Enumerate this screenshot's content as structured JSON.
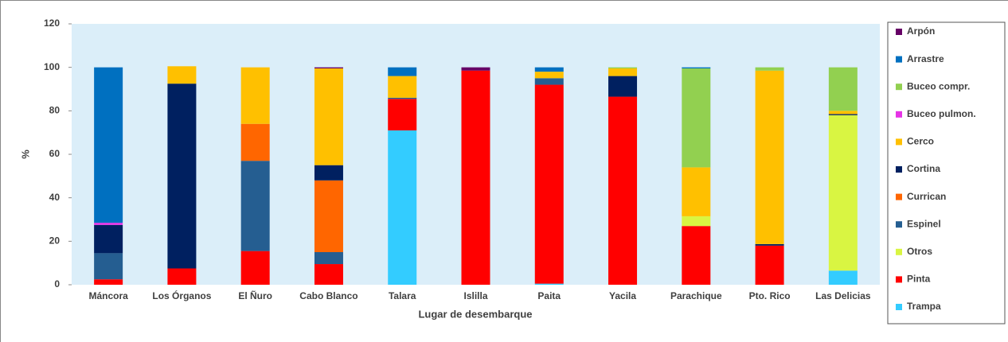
{
  "chart_data": {
    "type": "stacked_bar",
    "x_label": "Lugar de desembarque",
    "y_label": "%",
    "categories": [
      "Máncora",
      "Los Órganos",
      "El Ñuro",
      "Cabo Blanco",
      "Talara",
      "Islilla",
      "Paita",
      "Yacila",
      "Parachique",
      "Pto. Rico",
      "Las Delicias"
    ],
    "series": [
      {
        "name": "Arpón",
        "color": "#660066",
        "values": [
          0,
          0,
          0,
          0.5,
          0,
          1.5,
          0,
          0,
          0,
          0,
          0
        ]
      },
      {
        "name": "Arrastre",
        "color": "#0070c0",
        "values": [
          71.5,
          0,
          0,
          0,
          4,
          0,
          2,
          0,
          0.5,
          0,
          0
        ]
      },
      {
        "name": "Buceo compr.",
        "color": "#92d050",
        "values": [
          0,
          0,
          0,
          0,
          0,
          0,
          0,
          0.5,
          45.5,
          1.5,
          20
        ]
      },
      {
        "name": "Buceo pulmon.",
        "color": "#e633e6",
        "values": [
          1,
          0,
          0,
          0,
          0,
          0,
          0,
          0,
          0,
          0,
          0
        ]
      },
      {
        "name": "Cerco",
        "color": "#ffc000",
        "values": [
          0,
          8,
          26,
          44.5,
          10,
          0,
          3,
          3.5,
          22.5,
          79.8,
          1.5
        ]
      },
      {
        "name": "Cortina",
        "color": "#002060",
        "values": [
          13,
          85,
          0,
          7,
          0,
          0,
          0,
          9.5,
          0,
          0.7,
          0.5
        ]
      },
      {
        "name": "Currican",
        "color": "#ff6600",
        "values": [
          0,
          0,
          17,
          33,
          0,
          0,
          0,
          0,
          0,
          0,
          0
        ]
      },
      {
        "name": "Espinel",
        "color": "#255e91",
        "values": [
          12,
          0,
          41.5,
          5.5,
          0.5,
          0,
          3,
          0,
          0,
          0,
          0
        ]
      },
      {
        "name": "Otros",
        "color": "#d9f542",
        "values": [
          0,
          0,
          0,
          0,
          0,
          0,
          0,
          0,
          4.5,
          0,
          71.5
        ]
      },
      {
        "name": "Pinta",
        "color": "#ff0000",
        "values": [
          2.5,
          7.5,
          15.5,
          9.5,
          14.5,
          98.5,
          91.5,
          86.5,
          27,
          18,
          0
        ]
      },
      {
        "name": "Trampa",
        "color": "#33ccff",
        "values": [
          0,
          0,
          0,
          0,
          71,
          0,
          0.5,
          0,
          0,
          0,
          6.5
        ]
      }
    ],
    "ylim": [
      0,
      120
    ],
    "yticks": [
      0,
      20,
      40,
      60,
      80,
      100,
      120
    ],
    "grid": false,
    "plot_background": "#dbeef9",
    "legend": "right"
  }
}
